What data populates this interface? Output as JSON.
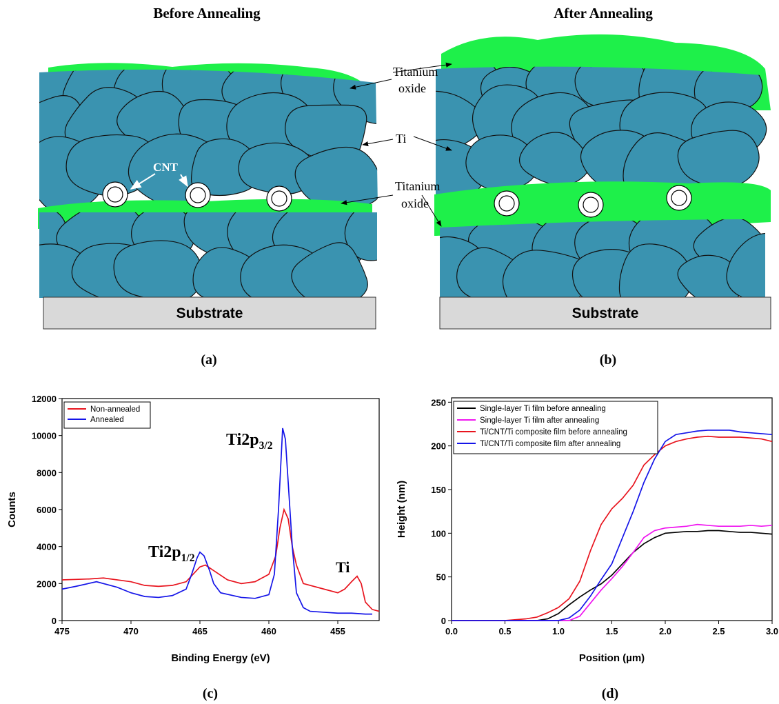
{
  "diagrams": {
    "before": {
      "title": "Before Annealing",
      "cnt_label": "CNT",
      "substrate": "Substrate",
      "caption": "(a)"
    },
    "after": {
      "title": "After Annealing",
      "substrate": "Substrate",
      "caption": "(b)"
    },
    "labels": {
      "top_oxide": [
        "Titanium",
        "oxide"
      ],
      "ti": "Ti",
      "mid_oxide": [
        "Titanium",
        "oxide"
      ]
    }
  },
  "chart_data": [
    {
      "type": "line",
      "caption": "(c)",
      "x_label": "Binding Energy (eV)",
      "y_label": "Counts",
      "xlim": [
        475,
        452
      ],
      "xticks": [
        475,
        470,
        465,
        460,
        455
      ],
      "ylim": [
        0,
        12000
      ],
      "yticks": [
        0,
        2000,
        4000,
        6000,
        8000,
        10000,
        12000
      ],
      "legend": "upper left",
      "annotations": [
        {
          "text": "Ti2p",
          "sub": "1/2"
        },
        {
          "text": "Ti2p",
          "sub": "3/2"
        },
        {
          "text": "Ti"
        }
      ],
      "series": [
        {
          "name": "Non-annealed",
          "color": "#e8141e",
          "x": [
            475,
            473,
            472,
            470,
            469,
            468,
            467,
            466,
            465.5,
            465,
            464.6,
            464,
            463,
            462,
            461,
            460,
            459.5,
            459.2,
            458.9,
            458.6,
            458.3,
            458,
            457.5,
            456,
            455,
            454.5,
            454,
            453.6,
            453.3,
            453,
            452.5,
            452
          ],
          "values": [
            2200,
            2250,
            2300,
            2100,
            1900,
            1850,
            1900,
            2100,
            2500,
            2900,
            3000,
            2700,
            2200,
            2000,
            2100,
            2500,
            3500,
            5000,
            6000,
            5500,
            4000,
            3000,
            2000,
            1700,
            1500,
            1700,
            2100,
            2400,
            2000,
            1000,
            600,
            500
          ]
        },
        {
          "name": "Annealed",
          "color": "#1414e8",
          "x": [
            475,
            474,
            472.5,
            471,
            470,
            469,
            468,
            467,
            466,
            465.6,
            465.2,
            465,
            464.7,
            464.3,
            464,
            463.5,
            462,
            461,
            460,
            459.6,
            459.3,
            459,
            458.8,
            458.6,
            458.3,
            458,
            457.5,
            457,
            456,
            455,
            454,
            453,
            452.5
          ],
          "values": [
            1700,
            1850,
            2100,
            1800,
            1500,
            1300,
            1250,
            1350,
            1700,
            2500,
            3400,
            3700,
            3500,
            2700,
            2000,
            1500,
            1250,
            1200,
            1400,
            2500,
            6000,
            10400,
            9800,
            7500,
            4000,
            1500,
            700,
            500,
            450,
            400,
            400,
            350,
            350
          ]
        }
      ]
    },
    {
      "type": "line",
      "caption": "(d)",
      "x_label": "Position (µm)",
      "y_label": "Height (nm)",
      "xlim": [
        0,
        3
      ],
      "xticks": [
        {
          "value": 0,
          "label": "0.0"
        },
        {
          "value": 0.5,
          "label": "0.5"
        },
        {
          "value": 1,
          "label": "1.0"
        },
        {
          "value": 1.5,
          "label": "1.5"
        },
        {
          "value": 2,
          "label": "2.0"
        },
        {
          "value": 2.5,
          "label": "2.5"
        },
        {
          "value": 3,
          "label": "3.0"
        }
      ],
      "ylim": [
        0,
        255
      ],
      "yticks": [
        0,
        50,
        100,
        150,
        200,
        250
      ],
      "legend": "upper left",
      "x": [
        0,
        0.1,
        0.2,
        0.3,
        0.4,
        0.5,
        0.6,
        0.7,
        0.8,
        0.9,
        1,
        1.1,
        1.2,
        1.3,
        1.4,
        1.5,
        1.6,
        1.7,
        1.8,
        1.9,
        2,
        2.1,
        2.2,
        2.3,
        2.4,
        2.5,
        2.6,
        2.7,
        2.8,
        2.9,
        3
      ],
      "series": [
        {
          "name": "Single-layer Ti film before annealing",
          "color": "#000000",
          "values": [
            0,
            0,
            0,
            0,
            0,
            0,
            0,
            0,
            0,
            2,
            8,
            18,
            27,
            35,
            42,
            52,
            65,
            78,
            88,
            95,
            100,
            101,
            102,
            102,
            103,
            103,
            102,
            101,
            101,
            100,
            99
          ]
        },
        {
          "name": "Single-layer Ti film after annealing",
          "color": "#f014f0",
          "values": [
            0,
            0,
            0,
            0,
            0,
            0,
            0,
            0,
            0,
            0,
            0,
            0,
            5,
            20,
            35,
            48,
            62,
            78,
            95,
            103,
            106,
            107,
            108,
            110,
            109,
            108,
            108,
            108,
            109,
            108,
            109
          ]
        },
        {
          "name": "Ti/CNT/Ti composite film before annealing",
          "color": "#e8141e",
          "values": [
            0,
            0,
            0,
            0,
            0,
            0,
            1,
            2,
            4,
            9,
            15,
            25,
            45,
            80,
            110,
            128,
            140,
            155,
            178,
            190,
            200,
            205,
            208,
            210,
            211,
            210,
            210,
            210,
            209,
            208,
            205
          ]
        },
        {
          "name": "Ti/CNT/Ti composite film after annealing",
          "color": "#1414e8",
          "values": [
            0,
            0,
            0,
            0,
            0,
            0,
            0,
            0,
            0,
            0,
            0,
            3,
            12,
            28,
            47,
            65,
            95,
            125,
            158,
            185,
            205,
            213,
            215,
            217,
            218,
            218,
            218,
            216,
            215,
            214,
            213
          ]
        }
      ]
    }
  ]
}
